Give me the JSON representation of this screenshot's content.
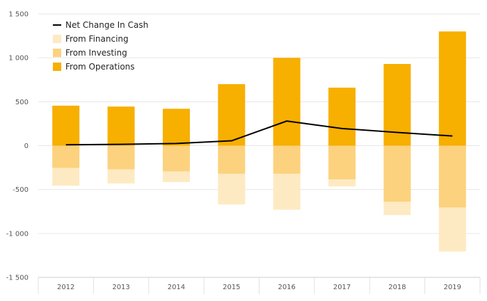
{
  "chart_data": {
    "type": "bar",
    "categories": [
      "2012",
      "2013",
      "2014",
      "2015",
      "2016",
      "2017",
      "2018",
      "2019"
    ],
    "y_ticks": [
      "1 500",
      "1 000",
      "500",
      "0",
      "-500",
      "-1 000",
      "-1 500"
    ],
    "ylim": [
      -1500,
      1500
    ],
    "grid": true,
    "legend_position": "top-left",
    "series": [
      {
        "name": "From Operations",
        "type": "bar",
        "color": "#F7AF00",
        "values": [
          455,
          445,
          420,
          700,
          1000,
          660,
          930,
          1300
        ]
      },
      {
        "name": "From Investing",
        "type": "bar",
        "color": "#FCD27E",
        "values": [
          -255,
          -270,
          -295,
          -320,
          -320,
          -385,
          -640,
          -705
        ]
      },
      {
        "name": "From Financing",
        "type": "bar",
        "color": "#FEEAC2",
        "values": [
          -200,
          -160,
          -120,
          -350,
          -410,
          -80,
          -150,
          -500
        ]
      },
      {
        "name": "Net Change In Cash",
        "type": "line",
        "color": "#000000",
        "values": [
          10,
          15,
          25,
          55,
          280,
          195,
          150,
          110
        ]
      }
    ]
  }
}
